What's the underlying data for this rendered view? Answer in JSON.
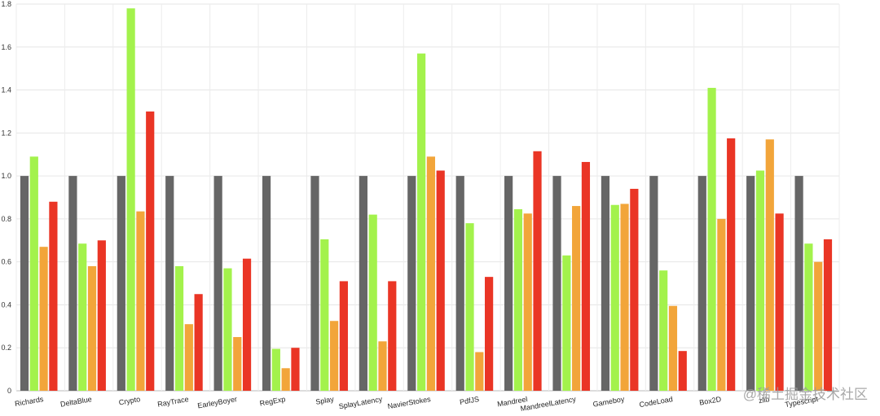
{
  "chart_data": {
    "type": "bar",
    "categories": [
      "Richards",
      "DeltaBlue",
      "Crypto",
      "RayTrace",
      "EarleyBoyer",
      "RegExp",
      "Splay",
      "SplayLatency",
      "NavierStokes",
      "PdfJS",
      "Mandreel",
      "MandreelLatency",
      "Gameboy",
      "CodeLoad",
      "Box2D",
      "zlib",
      "Typescript"
    ],
    "series": [
      {
        "color": "#666666",
        "values": [
          1.0,
          1.0,
          1.0,
          1.0,
          1.0,
          1.0,
          1.0,
          1.0,
          1.0,
          1.0,
          1.0,
          1.0,
          1.0,
          1.0,
          1.0,
          1.0,
          1.0
        ]
      },
      {
        "color": "#a3f24c",
        "values": [
          1.09,
          0.685,
          1.78,
          0.58,
          0.57,
          0.195,
          0.705,
          0.82,
          1.57,
          0.78,
          0.845,
          0.63,
          0.865,
          0.56,
          1.41,
          1.025,
          0.685
        ]
      },
      {
        "color": "#f2a53a",
        "values": [
          0.67,
          0.58,
          0.835,
          0.31,
          0.25,
          0.105,
          0.325,
          0.23,
          1.09,
          0.18,
          0.825,
          0.86,
          0.87,
          0.395,
          0.8,
          1.17,
          0.6
        ]
      },
      {
        "color": "#ea3525",
        "values": [
          0.88,
          0.7,
          1.3,
          0.45,
          0.615,
          0.2,
          0.51,
          0.51,
          1.025,
          0.53,
          1.115,
          1.065,
          0.94,
          0.185,
          1.175,
          0.825,
          0.705
        ]
      }
    ],
    "yticks": [
      "0",
      "0.2",
      "0.4",
      "0.6",
      "0.8",
      "1.0",
      "1.2",
      "1.4",
      "1.6",
      "1.8"
    ],
    "ylim": [
      0,
      1.8
    ],
    "grid": true,
    "legend": "none",
    "title": "",
    "xlabel": "",
    "ylabel": ""
  },
  "watermark": "@稀土掘金技术社区"
}
